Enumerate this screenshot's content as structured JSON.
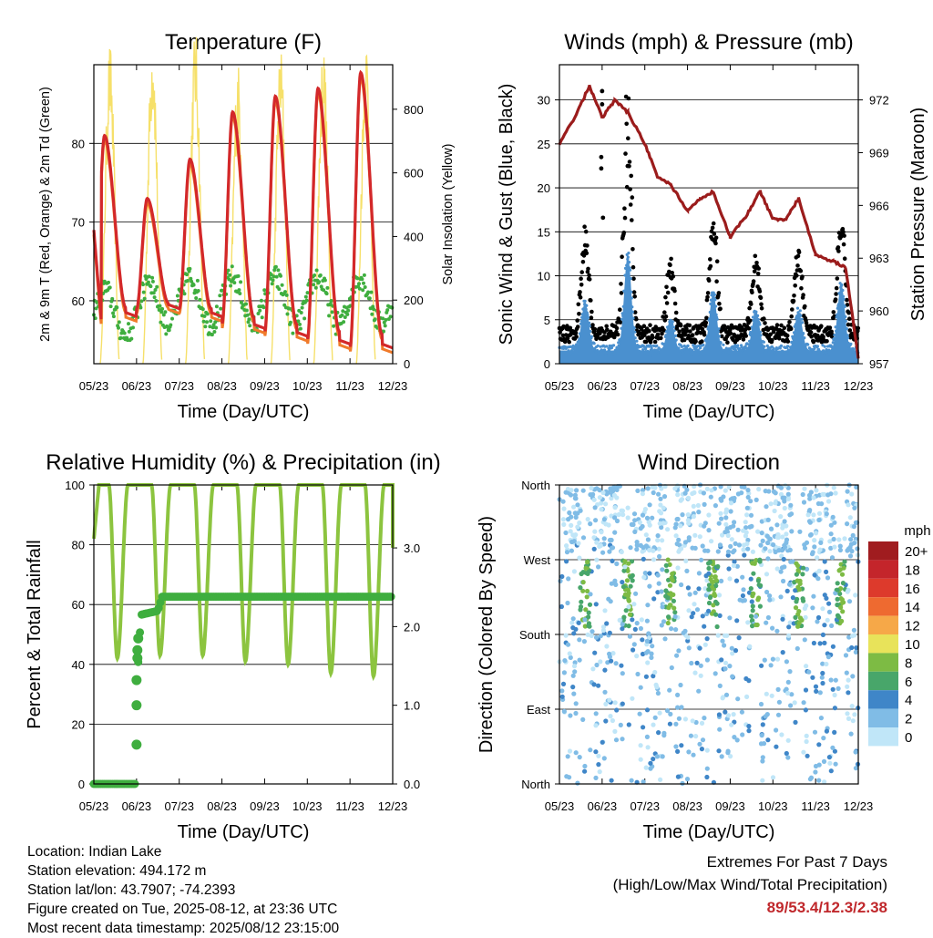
{
  "charts": {
    "temp": {
      "title": "Temperature (F)",
      "xlabel": "Time (Day/UTC)",
      "ylabel": "2m & 9m T (Red, Orange) & 2m Td (Green)",
      "ylabel2": "Solar Insolation (Yellow)",
      "yticks": [
        "60",
        "70",
        "80"
      ],
      "y2ticks": [
        "0",
        "200",
        "400",
        "600",
        "800"
      ]
    },
    "wind": {
      "title": "Winds (mph) & Pressure (mb)",
      "xlabel": "Time (Day/UTC)",
      "ylabel": "Sonic Wind & Gust (Blue, Black)",
      "ylabel2": "Station Pressure (Maroon)",
      "yticks": [
        "0",
        "5",
        "10",
        "15",
        "20",
        "25",
        "30"
      ],
      "y2ticks": [
        "957",
        "960",
        "963",
        "966",
        "969",
        "972"
      ]
    },
    "rh": {
      "title": "Relative Humidity (%) & Precipitation (in)",
      "xlabel": "Time (Day/UTC)",
      "ylabel": "Percent & Total Rainfall",
      "yticks": [
        "0",
        "20",
        "40",
        "60",
        "80",
        "100"
      ],
      "y2ticks": [
        "0.0",
        "1.0",
        "2.0",
        "3.0"
      ]
    },
    "dir": {
      "title": "Wind Direction",
      "xlabel": "Time (Day/UTC)",
      "ylabel": "Direction (Colored By Speed)",
      "yticks": [
        "North",
        "East",
        "South",
        "West",
        "North"
      ],
      "legend_title": "mph",
      "legend_labels": [
        "20+",
        "18",
        "16",
        "14",
        "12",
        "10",
        "8",
        "6",
        "4",
        "2",
        "0"
      ],
      "legend_colors": [
        "#a01c1f",
        "#c4252b",
        "#dd3a2c",
        "#ee6a30",
        "#f6a848",
        "#e8e35a",
        "#7dbb44",
        "#48a66a",
        "#3f86c8",
        "#80bce6",
        "#c0e6f8"
      ]
    },
    "xticks": [
      "05/23",
      "06/23",
      "07/23",
      "08/23",
      "09/23",
      "10/23",
      "11/23",
      "12/23"
    ]
  },
  "chart_data": [
    {
      "type": "line",
      "title": "Temperature (F)",
      "x": [
        "05/23",
        "06/23",
        "07/23",
        "08/23",
        "09/23",
        "10/23",
        "11/23",
        "12/23"
      ],
      "ylim": [
        52,
        90
      ],
      "y2lim": [
        0,
        940
      ],
      "series": [
        {
          "name": "2m T",
          "color": "#d3282a",
          "daily_highs": [
            81,
            73,
            78,
            84,
            86,
            87,
            89
          ],
          "daily_lows": [
            57,
            59,
            59,
            57,
            56,
            55,
            54
          ]
        },
        {
          "name": "9m T",
          "color": "#f07a2a"
        },
        {
          "name": "2m Td",
          "color": "#3fae3f",
          "range": [
            55,
            66
          ]
        },
        {
          "name": "Solar Insolation",
          "color": "#f6e06a",
          "daily_peaks": [
            880,
            910,
            920,
            830,
            870,
            880,
            900
          ]
        }
      ]
    },
    {
      "type": "line",
      "title": "Winds (mph) & Pressure (mb)",
      "x": [
        "05/23",
        "06/23",
        "07/23",
        "08/23",
        "09/23",
        "10/23",
        "11/23",
        "12/23"
      ],
      "ylim": [
        0,
        34
      ],
      "y2lim": [
        957,
        974
      ],
      "series": [
        {
          "name": "Sonic Wind",
          "color": "#4a90cf",
          "daily_peaks": [
            7,
            12.3,
            5,
            8,
            6,
            6,
            9,
            6
          ]
        },
        {
          "name": "Gust",
          "color": "#000000",
          "daily_peaks": [
            14,
            31,
            11,
            15,
            11,
            13,
            14,
            11
          ]
        },
        {
          "name": "Station Pressure",
          "color": "#9b1c1c",
          "points": [
            [
              0,
              969.5
            ],
            [
              0.4,
              971.2
            ],
            [
              0.7,
              972.8
            ],
            [
              1.0,
              971.0
            ],
            [
              1.3,
              972.0
            ],
            [
              1.6,
              971.3
            ],
            [
              2.0,
              969.5
            ],
            [
              2.3,
              967.6
            ],
            [
              2.6,
              967.2
            ],
            [
              3.0,
              965.7
            ],
            [
              3.3,
              966.4
            ],
            [
              3.6,
              966.8
            ],
            [
              4.0,
              964.2
            ],
            [
              4.4,
              965.5
            ],
            [
              4.7,
              966.8
            ],
            [
              5.0,
              965.2
            ],
            [
              5.3,
              965.2
            ],
            [
              5.6,
              966.4
            ],
            [
              6.0,
              963.2
            ],
            [
              6.4,
              962.8
            ],
            [
              6.7,
              962.5
            ],
            [
              7.0,
              957.3
            ]
          ]
        }
      ]
    },
    {
      "type": "line",
      "title": "Relative Humidity (%) & Precipitation (in)",
      "x": [
        "05/23",
        "06/23",
        "07/23",
        "08/23",
        "09/23",
        "10/23",
        "11/23",
        "12/23"
      ],
      "ylim": [
        0,
        100
      ],
      "y2lim": [
        0,
        3.8
      ],
      "series": [
        {
          "name": "Relative Humidity",
          "color": "#8cc43f",
          "daily_max": [
            100,
            100,
            100,
            100,
            100,
            100,
            100
          ],
          "daily_min": [
            42,
            43,
            43,
            41,
            40,
            37,
            36
          ]
        },
        {
          "name": "Total Rainfall",
          "color": "#3fae3f",
          "points": [
            [
              0,
              0
            ],
            [
              0.98,
              0
            ],
            [
              1.0,
              0.5
            ],
            [
              1.02,
              1.4
            ],
            [
              1.06,
              1.7
            ],
            [
              1.1,
              2.15
            ],
            [
              1.5,
              2.2
            ],
            [
              1.6,
              2.38
            ],
            [
              7.0,
              2.38
            ]
          ]
        }
      ]
    },
    {
      "type": "scatter",
      "title": "Wind Direction",
      "x": [
        "05/23",
        "06/23",
        "07/23",
        "08/23",
        "09/23",
        "10/23",
        "11/23",
        "12/23"
      ],
      "ylim": [
        "North",
        "North"
      ],
      "yticks": [
        "North",
        "East",
        "South",
        "West",
        "North"
      ]
    }
  ],
  "extremes": {
    "title": "Extremes For Past 7 Days",
    "subtitle": "(High/Low/Max Wind/Total Precipitation)",
    "values": "89/53.4/12.3/2.38"
  },
  "info": {
    "location": "Location: Indian Lake",
    "elevation": "Station elevation: 494.172 m",
    "latlon": "Station lat/lon: 43.7907; -74.2393",
    "created": "Figure created on Tue, 2025-08-12, at 23:36 UTC",
    "recent": "Most recent data timestamp: 2025/08/12 23:15:00"
  }
}
